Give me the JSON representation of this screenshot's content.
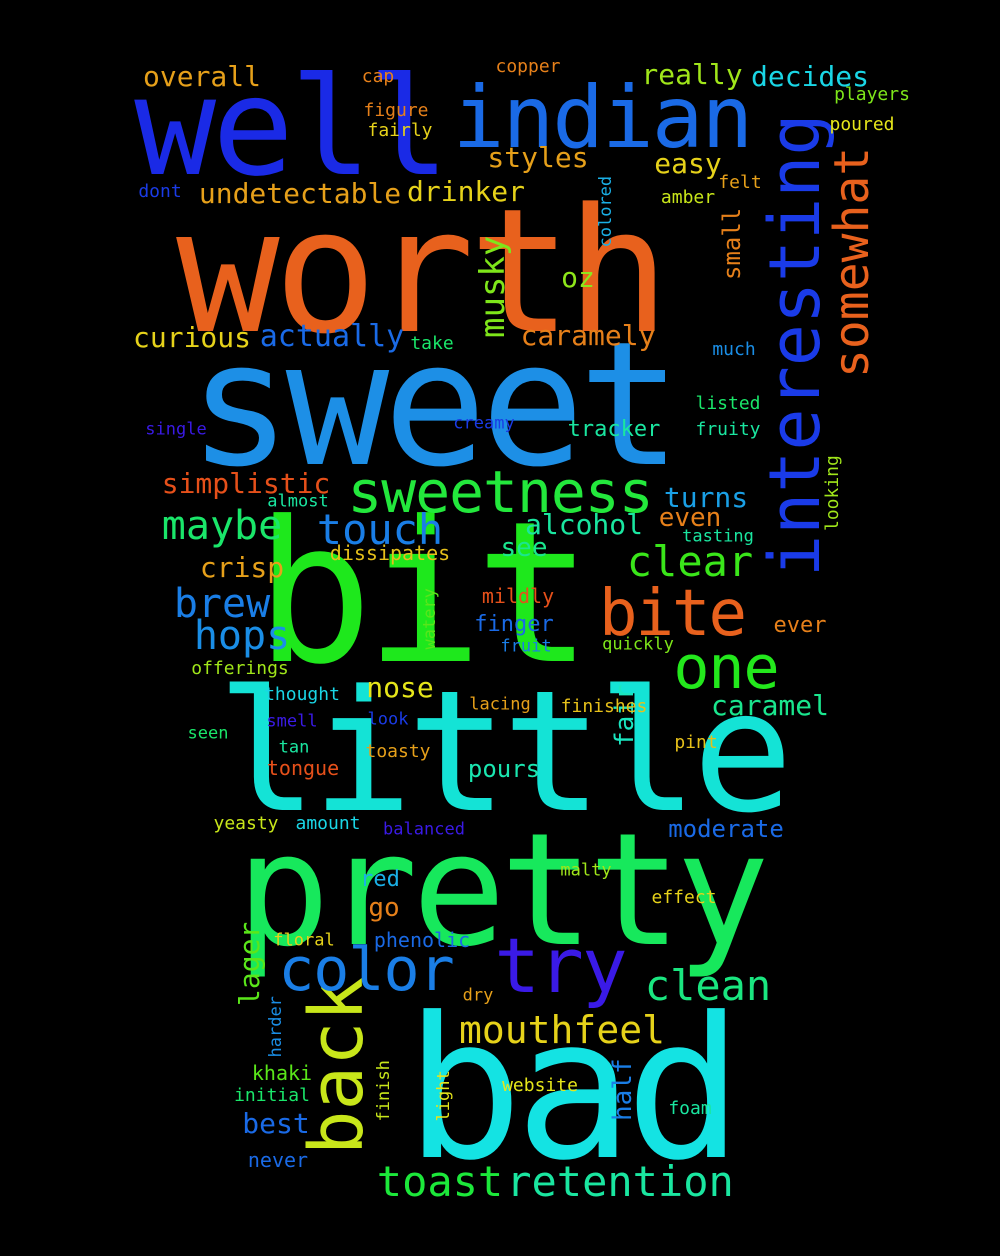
{
  "words": [
    {
      "text": "worth",
      "color": "#e8611d"
    },
    {
      "text": "sweet",
      "color": "#1d8fe6"
    },
    {
      "text": "bit",
      "color": "#1ee81c"
    },
    {
      "text": "little",
      "color": "#14e3d6"
    },
    {
      "text": "pretty",
      "color": "#17e85c"
    },
    {
      "text": "bad",
      "color": "#14e3e3"
    },
    {
      "text": "well",
      "color": "#1a2ae6"
    },
    {
      "text": "interesting",
      "color": "#1a3be8"
    },
    {
      "text": "indian",
      "color": "#1a6ae6"
    },
    {
      "text": "sweetness",
      "color": "#23e83c"
    },
    {
      "text": "somewhat",
      "color": "#e8611d"
    },
    {
      "text": "try",
      "color": "#3a1ae6"
    },
    {
      "text": "color",
      "color": "#1a7ee6"
    },
    {
      "text": "back",
      "color": "#c8e61a"
    },
    {
      "text": "one",
      "color": "#23e81c"
    },
    {
      "text": "bite",
      "color": "#e8611d"
    },
    {
      "text": "mouthfeel",
      "color": "#e6d21a"
    },
    {
      "text": "toast",
      "color": "#1ce83a"
    },
    {
      "text": "retention",
      "color": "#1ae6a0"
    },
    {
      "text": "clean",
      "color": "#1ae680"
    },
    {
      "text": "clear",
      "color": "#3ae61a"
    },
    {
      "text": "touch",
      "color": "#1a7ee6"
    },
    {
      "text": "maybe",
      "color": "#1ae66a"
    },
    {
      "text": "brew",
      "color": "#1a7ee6"
    },
    {
      "text": "hops",
      "color": "#1a8ee6"
    },
    {
      "text": "musky",
      "color": "#7ee61a"
    },
    {
      "text": "overall",
      "color": "#e6a01a"
    },
    {
      "text": "really",
      "color": "#a0e61a"
    },
    {
      "text": "decides",
      "color": "#1ad6e6"
    },
    {
      "text": "styles",
      "color": "#e6a01a"
    },
    {
      "text": "easy",
      "color": "#e6d21a"
    },
    {
      "text": "undetectable",
      "color": "#e6a01a"
    },
    {
      "text": "drinker",
      "color": "#e6d21a"
    },
    {
      "text": "actually",
      "color": "#1a6ae6"
    },
    {
      "text": "curious",
      "color": "#e6d21a"
    },
    {
      "text": "caramely",
      "color": "#e6801a"
    },
    {
      "text": "oz",
      "color": "#8ee61a"
    },
    {
      "text": "small",
      "color": "#e6801a"
    },
    {
      "text": "simplistic",
      "color": "#e6501a"
    },
    {
      "text": "alcohol",
      "color": "#1ae6a0"
    },
    {
      "text": "turns",
      "color": "#1aa0e6"
    },
    {
      "text": "even",
      "color": "#e6801a"
    },
    {
      "text": "see",
      "color": "#1ae68e"
    },
    {
      "text": "crisp",
      "color": "#e6a01a"
    },
    {
      "text": "nose",
      "color": "#e6e61a"
    },
    {
      "text": "caramel",
      "color": "#1ae68e"
    },
    {
      "text": "fair",
      "color": "#1ae6c0"
    },
    {
      "text": "pours",
      "color": "#1ae6b0"
    },
    {
      "text": "moderate",
      "color": "#1a6ae6"
    },
    {
      "text": "lager",
      "color": "#5ae61a"
    },
    {
      "text": "best",
      "color": "#1a6ae6"
    },
    {
      "text": "half",
      "color": "#1a7ee6"
    },
    {
      "text": "go",
      "color": "#e6801a"
    },
    {
      "text": "red",
      "color": "#1ab0e6"
    },
    {
      "text": "finger",
      "color": "#1a6ae6"
    },
    {
      "text": "copper",
      "color": "#e6801a"
    },
    {
      "text": "cap",
      "color": "#e6801a"
    },
    {
      "text": "figure",
      "color": "#e6801a"
    },
    {
      "text": "fairly",
      "color": "#e6d21a"
    },
    {
      "text": "players",
      "color": "#7ee61a"
    },
    {
      "text": "poured",
      "color": "#e6e61a"
    },
    {
      "text": "dont",
      "color": "#1a3be6"
    },
    {
      "text": "felt",
      "color": "#e6a01a"
    },
    {
      "text": "amber",
      "color": "#c8e61a"
    },
    {
      "text": "colored",
      "color": "#1ab0e6"
    },
    {
      "text": "take",
      "color": "#1ae66a"
    },
    {
      "text": "much",
      "color": "#1a8ee6"
    },
    {
      "text": "listed",
      "color": "#1ae66a"
    },
    {
      "text": "fruity",
      "color": "#1ae6a0"
    },
    {
      "text": "tracker",
      "color": "#1ae6a0"
    },
    {
      "text": "single",
      "color": "#3a1ae6"
    },
    {
      "text": "creamy",
      "color": "#1a3be6"
    },
    {
      "text": "almost",
      "color": "#1ae6a0"
    },
    {
      "text": "looking",
      "color": "#a0e61a"
    },
    {
      "text": "tasting",
      "color": "#1ae6a0"
    },
    {
      "text": "dissipates",
      "color": "#e6c01a"
    },
    {
      "text": "mildly",
      "color": "#e6501a"
    },
    {
      "text": "watery",
      "color": "#5ae61a"
    },
    {
      "text": "ever",
      "color": "#e6801a"
    },
    {
      "text": "fruit",
      "color": "#1a7ee6"
    },
    {
      "text": "quickly",
      "color": "#7ee61a"
    },
    {
      "text": "offerings",
      "color": "#a0e61a"
    },
    {
      "text": "thought",
      "color": "#1ad6e6"
    },
    {
      "text": "lacing",
      "color": "#e6a01a"
    },
    {
      "text": "finishes",
      "color": "#e6c01a"
    },
    {
      "text": "smell",
      "color": "#3a1ae6"
    },
    {
      "text": "look",
      "color": "#1a3be6"
    },
    {
      "text": "seen",
      "color": "#1ae66a"
    },
    {
      "text": "tan",
      "color": "#1ae6a0"
    },
    {
      "text": "tongue",
      "color": "#e6501a"
    },
    {
      "text": "toasty",
      "color": "#e6a01a"
    },
    {
      "text": "pint",
      "color": "#e6c01a"
    },
    {
      "text": "yeasty",
      "color": "#c8e61a"
    },
    {
      "text": "amount",
      "color": "#1ad6e6"
    },
    {
      "text": "balanced",
      "color": "#3a1ae6"
    },
    {
      "text": "malty",
      "color": "#a0e61a"
    },
    {
      "text": "effect",
      "color": "#e6d21a"
    },
    {
      "text": "phenolic",
      "color": "#1a6ae6"
    },
    {
      "text": "floral",
      "color": "#e6d21a"
    },
    {
      "text": "dry",
      "color": "#e6a01a"
    },
    {
      "text": "harder",
      "color": "#1a8ee6"
    },
    {
      "text": "khaki",
      "color": "#5ae61a"
    },
    {
      "text": "initial",
      "color": "#1ae66a"
    },
    {
      "text": "finish",
      "color": "#c8e61a"
    },
    {
      "text": "light",
      "color": "#e6e61a"
    },
    {
      "text": "website",
      "color": "#e6e61a"
    },
    {
      "text": "foam",
      "color": "#1ae6a0"
    },
    {
      "text": "never",
      "color": "#1a6ae6"
    }
  ]
}
